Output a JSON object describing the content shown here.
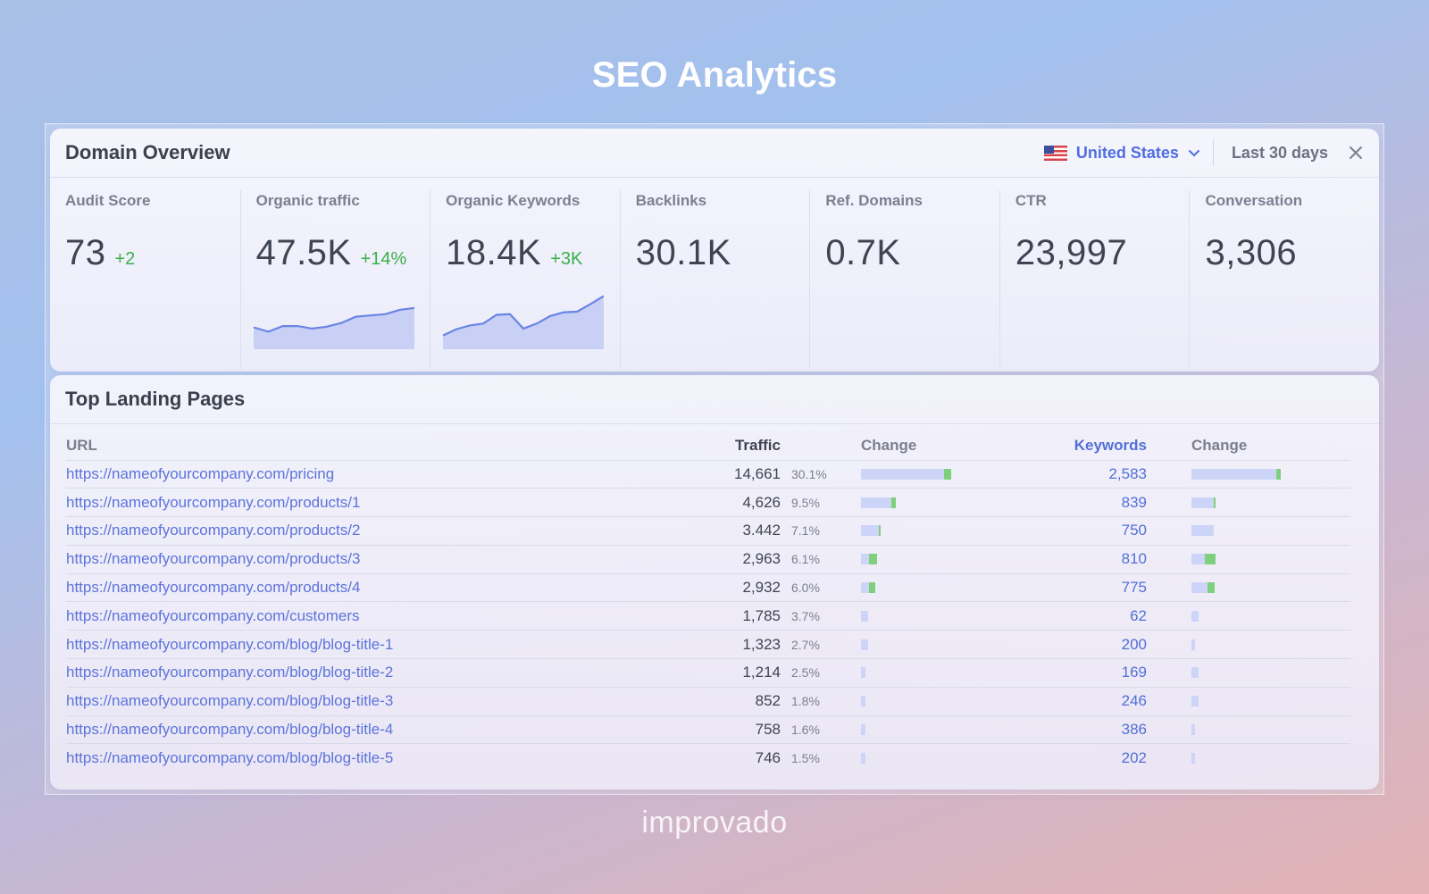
{
  "page": {
    "title": "SEO Analytics",
    "logo": "improvado"
  },
  "overview": {
    "title": "Domain Overview",
    "country": "United States",
    "period": "Last 30 days",
    "metrics": [
      {
        "label": "Audit Score",
        "value": "73",
        "delta": "+2"
      },
      {
        "label": "Organic traffic",
        "value": "47.5K",
        "delta": "+14%"
      },
      {
        "label": "Organic Keywords",
        "value": "18.4K",
        "delta": "+3K"
      },
      {
        "label": "Backlinks",
        "value": "30.1K"
      },
      {
        "label": "Ref. Domains",
        "value": "0.7K"
      },
      {
        "label": "CTR",
        "value": "23,997"
      },
      {
        "label": "Conversation",
        "value": "3,306"
      }
    ],
    "sparklines": {
      "organic_traffic": [
        0.35,
        0.28,
        0.37,
        0.37,
        0.33,
        0.36,
        0.42,
        0.52,
        0.54,
        0.56,
        0.63,
        0.66
      ],
      "organic_keywords": [
        0.22,
        0.32,
        0.38,
        0.41,
        0.55,
        0.56,
        0.33,
        0.41,
        0.53,
        0.59,
        0.6,
        0.72,
        0.85
      ]
    }
  },
  "landing": {
    "title": "Top Landing Pages",
    "columns": {
      "url": "URL",
      "traffic": "Traffic",
      "change": "Change",
      "keywords": "Keywords",
      "change2": "Change"
    },
    "rows": [
      {
        "url": "https://nameofyourcompany.com/pricing",
        "traffic": "14,661",
        "pct": "30.1%",
        "kw": "2,583",
        "t_base": 0.93,
        "t_up": 0.08,
        "k_base": 0.95,
        "k_up": 0.05
      },
      {
        "url": "https://nameofyourcompany.com/products/1",
        "traffic": "4,626",
        "pct": "9.5%",
        "kw": "839",
        "t_base": 0.34,
        "t_up": 0.05,
        "k_base": 0.25,
        "k_up": 0.02
      },
      {
        "url": "https://nameofyourcompany.com/products/2",
        "traffic": "3.442",
        "pct": "7.1%",
        "kw": "750",
        "t_base": 0.2,
        "t_up": 0.02,
        "k_base": 0.25,
        "k_up": 0.0
      },
      {
        "url": "https://nameofyourcompany.com/products/3",
        "traffic": "2,963",
        "pct": "6.1%",
        "kw": "810",
        "t_base": 0.09,
        "t_up": 0.09,
        "k_base": 0.15,
        "k_up": 0.12
      },
      {
        "url": "https://nameofyourcompany.com/products/4",
        "traffic": "2,932",
        "pct": "6.0%",
        "kw": "775",
        "t_base": 0.09,
        "t_up": 0.07,
        "k_base": 0.18,
        "k_up": 0.08
      },
      {
        "url": "https://nameofyourcompany.com/customers",
        "traffic": "1,785",
        "pct": "3.7%",
        "kw": "62",
        "t_base": 0.08,
        "t_up": 0.0,
        "k_base": 0.08,
        "k_up": 0.0
      },
      {
        "url": "https://nameofyourcompany.com/blog/blog-title-1",
        "traffic": "1,323",
        "pct": "2.7%",
        "kw": "200",
        "t_base": 0.08,
        "t_up": 0.0,
        "k_base": 0.04,
        "k_up": 0.0
      },
      {
        "url": "https://nameofyourcompany.com/blog/blog-title-2",
        "traffic": "1,214",
        "pct": "2.5%",
        "kw": "169",
        "t_base": 0.05,
        "t_up": 0.0,
        "k_base": 0.08,
        "k_up": 0.0
      },
      {
        "url": "https://nameofyourcompany.com/blog/blog-title-3",
        "traffic": "852",
        "pct": "1.8%",
        "kw": "246",
        "t_base": 0.05,
        "t_up": 0.0,
        "k_base": 0.08,
        "k_up": 0.0
      },
      {
        "url": "https://nameofyourcompany.com/blog/blog-title-4",
        "traffic": "758",
        "pct": "1.6%",
        "kw": "386",
        "t_base": 0.05,
        "t_up": 0.0,
        "k_base": 0.04,
        "k_up": 0.0
      },
      {
        "url": "https://nameofyourcompany.com/blog/blog-title-5",
        "traffic": "746",
        "pct": "1.5%",
        "kw": "202",
        "t_base": 0.05,
        "t_up": 0.0,
        "k_base": 0.04,
        "k_up": 0.0
      }
    ]
  },
  "colors": {
    "accent": "#5c73db",
    "positive": "#3bb04a",
    "bar": "#ccd4f8",
    "bar_up": "#7fd07c"
  }
}
